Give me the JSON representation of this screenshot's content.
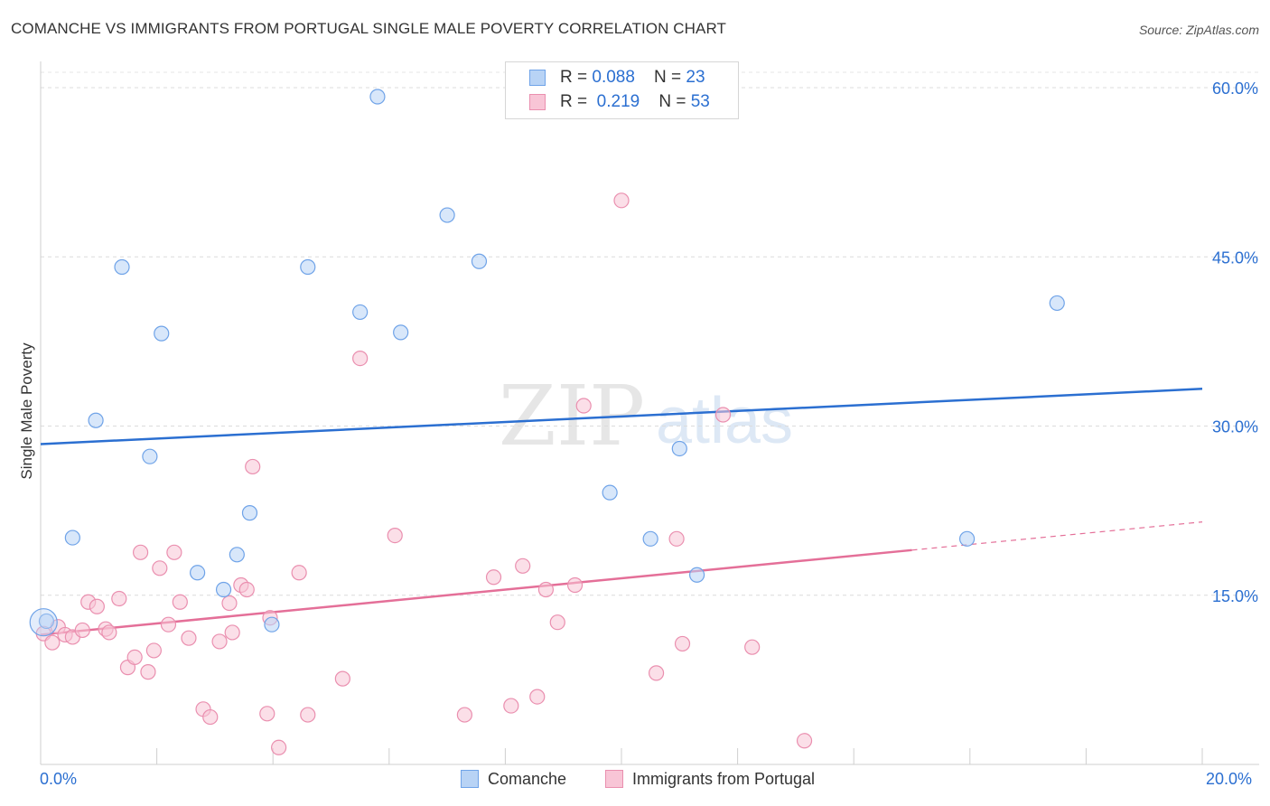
{
  "title": "COMANCHE VS IMMIGRANTS FROM PORTUGAL SINGLE MALE POVERTY CORRELATION CHART",
  "source": "Source: ZipAtlas.com",
  "watermark": {
    "zip": "ZIP",
    "atlas": "atlas"
  },
  "legend": {
    "series1": {
      "r_label": "R = ",
      "r_value": "0.088",
      "n_label": "N = ",
      "n_value": "23"
    },
    "series2": {
      "r_label": "R = ",
      "r_value": "0.219",
      "n_label": "N = ",
      "n_value": "53"
    }
  },
  "bottom_legend": {
    "series1": "Comanche",
    "series2": "Immigrants from Portugal"
  },
  "x_start_label": "0.0%",
  "x_end_label": "20.0%",
  "chart_data": {
    "type": "scatter",
    "title": "COMANCHE VS IMMIGRANTS FROM PORTUGAL SINGLE MALE POVERTY CORRELATION CHART",
    "xlabel": "",
    "ylabel": "Single Male Poverty",
    "xlim": [
      0,
      20
    ],
    "ylim": [
      0,
      60
    ],
    "y_ticks": [
      15,
      30,
      45,
      60
    ],
    "y_tick_labels": [
      "15.0%",
      "30.0%",
      "45.0%",
      "60.0%"
    ],
    "grid": true,
    "colors": {
      "series1": "#6fa3e8",
      "series1_fill": "#b8d3f5",
      "series1_line": "#2b6fd1",
      "series2": "#ea8faf",
      "series2_fill": "#f8c5d6",
      "series2_line": "#e46f98",
      "accent_text": "#2b6fd1"
    },
    "series": [
      {
        "name": "Comanche",
        "points": [
          [
            0.1,
            12.7
          ],
          [
            0.55,
            20.1
          ],
          [
            0.95,
            30.5
          ],
          [
            1.4,
            44.1
          ],
          [
            1.88,
            27.3
          ],
          [
            2.08,
            38.2
          ],
          [
            2.7,
            17.0
          ],
          [
            3.15,
            15.5
          ],
          [
            3.38,
            18.6
          ],
          [
            3.6,
            22.3
          ],
          [
            3.98,
            12.4
          ],
          [
            4.6,
            44.1
          ],
          [
            5.5,
            40.1
          ],
          [
            5.8,
            59.2
          ],
          [
            6.2,
            38.3
          ],
          [
            7.0,
            48.7
          ],
          [
            7.55,
            44.6
          ],
          [
            9.8,
            24.1
          ],
          [
            10.5,
            20.0
          ],
          [
            11.0,
            28.0
          ],
          [
            11.3,
            16.8
          ],
          [
            15.95,
            20.0
          ],
          [
            17.5,
            40.9
          ]
        ],
        "trend": {
          "x": [
            0,
            20
          ],
          "y": [
            28.4,
            33.3
          ]
        }
      },
      {
        "name": "Immigrants from Portugal",
        "points": [
          [
            0.05,
            11.6
          ],
          [
            0.2,
            10.8
          ],
          [
            0.3,
            12.2
          ],
          [
            0.42,
            11.5
          ],
          [
            0.55,
            11.3
          ],
          [
            0.72,
            11.9
          ],
          [
            0.82,
            14.4
          ],
          [
            0.97,
            14.0
          ],
          [
            1.12,
            12.0
          ],
          [
            1.18,
            11.7
          ],
          [
            1.35,
            14.7
          ],
          [
            1.5,
            8.6
          ],
          [
            1.62,
            9.5
          ],
          [
            1.72,
            18.8
          ],
          [
            1.85,
            8.2
          ],
          [
            1.95,
            10.1
          ],
          [
            2.05,
            17.4
          ],
          [
            2.2,
            12.4
          ],
          [
            2.3,
            18.8
          ],
          [
            2.4,
            14.4
          ],
          [
            2.55,
            11.2
          ],
          [
            2.8,
            4.9
          ],
          [
            2.92,
            4.2
          ],
          [
            3.08,
            10.9
          ],
          [
            3.25,
            14.3
          ],
          [
            3.3,
            11.7
          ],
          [
            3.45,
            15.9
          ],
          [
            3.55,
            15.5
          ],
          [
            3.65,
            26.4
          ],
          [
            3.9,
            4.5
          ],
          [
            3.95,
            13.0
          ],
          [
            4.1,
            1.5
          ],
          [
            4.45,
            17.0
          ],
          [
            4.6,
            4.4
          ],
          [
            5.2,
            7.6
          ],
          [
            5.5,
            36.0
          ],
          [
            6.1,
            20.3
          ],
          [
            7.3,
            4.4
          ],
          [
            7.8,
            16.6
          ],
          [
            8.1,
            5.2
          ],
          [
            8.3,
            17.6
          ],
          [
            8.55,
            6.0
          ],
          [
            8.7,
            15.5
          ],
          [
            8.9,
            12.6
          ],
          [
            9.2,
            15.9
          ],
          [
            9.35,
            31.8
          ],
          [
            10.0,
            50.0
          ],
          [
            10.6,
            8.1
          ],
          [
            10.95,
            20.0
          ],
          [
            11.05,
            10.7
          ],
          [
            11.75,
            31.0
          ],
          [
            12.25,
            10.4
          ],
          [
            13.15,
            2.1
          ]
        ],
        "trend": {
          "x": [
            0,
            15
          ],
          "y": [
            11.5,
            19.0
          ]
        },
        "trend_dashed": {
          "x": [
            15,
            20
          ],
          "y": [
            19.0,
            21.5
          ]
        }
      }
    ]
  }
}
